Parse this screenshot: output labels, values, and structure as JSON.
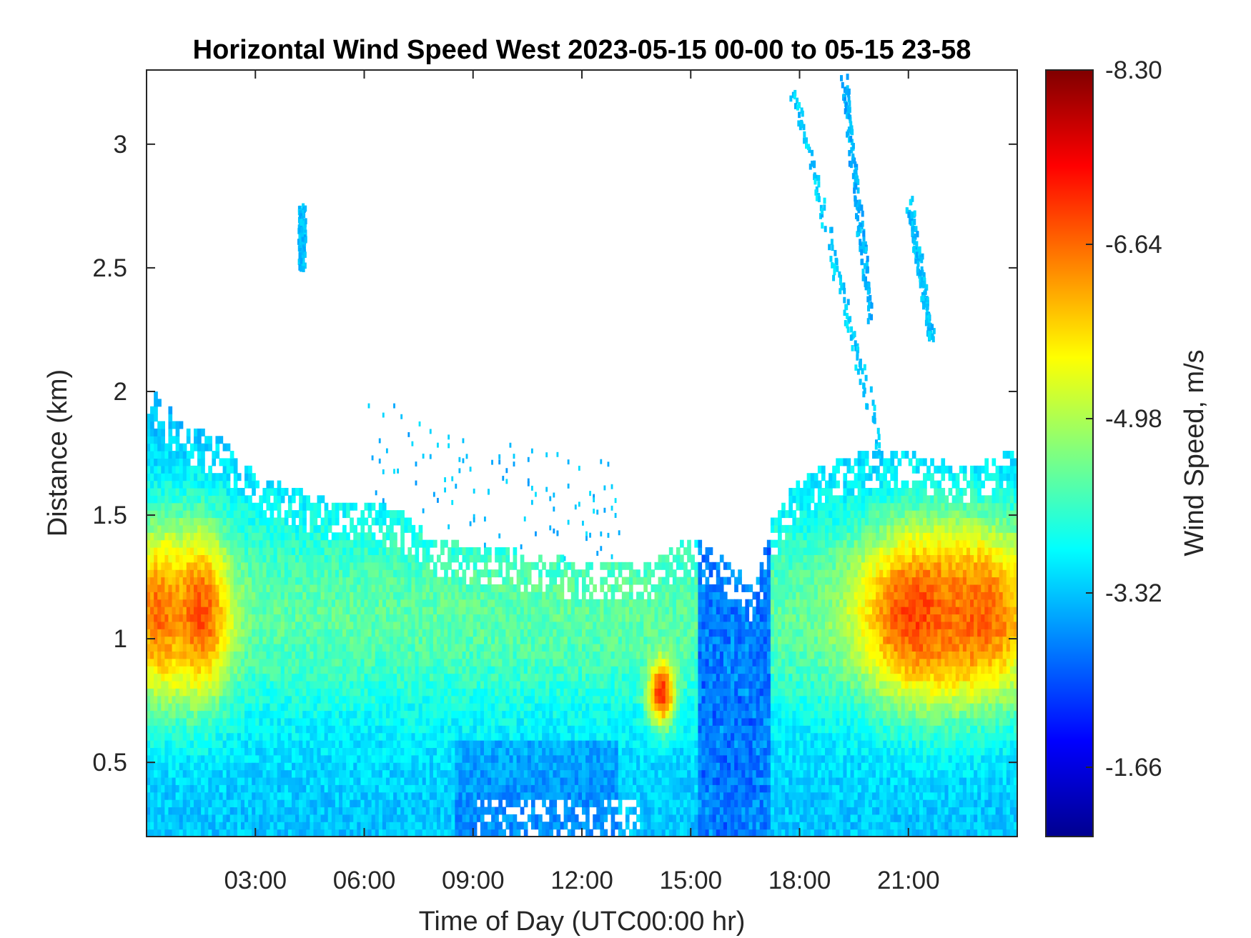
{
  "chart_data": {
    "type": "heatmap",
    "title": "Horizontal Wind Speed West 2023-05-15 00-00 to 05-15 23-58",
    "xlabel": "Time of Day (UTC00:00 hr)",
    "ylabel": "Distance (km)",
    "colorbar_label": "Wind Speed, m/s",
    "xlim_hours": [
      0,
      24
    ],
    "ylim_km": [
      0.2,
      3.3
    ],
    "x_ticks": [
      {
        "value": 3,
        "label": "03:00"
      },
      {
        "value": 6,
        "label": "06:00"
      },
      {
        "value": 9,
        "label": "09:00"
      },
      {
        "value": 12,
        "label": "12:00"
      },
      {
        "value": 15,
        "label": "15:00"
      },
      {
        "value": 18,
        "label": "18:00"
      },
      {
        "value": 21,
        "label": "21:00"
      }
    ],
    "y_ticks": [
      {
        "value": 0.5,
        "label": "0.5"
      },
      {
        "value": 1,
        "label": "1"
      },
      {
        "value": 1.5,
        "label": "1.5"
      },
      {
        "value": 2,
        "label": "2"
      },
      {
        "value": 2.5,
        "label": "2.5"
      },
      {
        "value": 3,
        "label": "3"
      }
    ],
    "colorbar_range": [
      -1.0,
      -8.3
    ],
    "colorbar_ticks": [
      {
        "value": -8.3,
        "label": "-8.30"
      },
      {
        "value": -6.64,
        "label": "-6.64"
      },
      {
        "value": -4.98,
        "label": "-4.98"
      },
      {
        "value": -3.32,
        "label": "-3.32"
      },
      {
        "value": -1.66,
        "label": "-1.66"
      }
    ],
    "colormap": "jet",
    "grid": false,
    "data_top_km_by_hour": [
      [
        0.0,
        2.0
      ],
      [
        0.5,
        1.95
      ],
      [
        1,
        1.85
      ],
      [
        2,
        1.8
      ],
      [
        3,
        1.65
      ],
      [
        4,
        1.6
      ],
      [
        5,
        1.55
      ],
      [
        6,
        1.55
      ],
      [
        7,
        1.5
      ],
      [
        8,
        1.4
      ],
      [
        9,
        1.35
      ],
      [
        10,
        1.35
      ],
      [
        11,
        1.32
      ],
      [
        12,
        1.3
      ],
      [
        13,
        1.3
      ],
      [
        14,
        1.3
      ],
      [
        15,
        1.4
      ],
      [
        16,
        1.3
      ],
      [
        16.8,
        1.2
      ],
      [
        17.2,
        1.45
      ],
      [
        18,
        1.65
      ],
      [
        19,
        1.7
      ],
      [
        20,
        1.75
      ],
      [
        21,
        1.75
      ],
      [
        22,
        1.7
      ],
      [
        23,
        1.7
      ],
      [
        24,
        1.75
      ]
    ],
    "speed_peaks": [
      {
        "hour": 0.3,
        "km": 1.1,
        "speed": -6.6
      },
      {
        "hour": 1.5,
        "km": 1.1,
        "speed": -6.8
      },
      {
        "hour": 14.2,
        "km": 0.78,
        "speed": -7.2
      },
      {
        "hour": 21.2,
        "km": 1.1,
        "speed": -7.0
      },
      {
        "hour": 23.0,
        "km": 1.1,
        "speed": -6.7
      }
    ],
    "aloft_streaks": [
      {
        "from_hour": 17.8,
        "from_km": 3.2,
        "to_hour": 20.2,
        "to_km": 1.75,
        "speed": -3.4
      },
      {
        "from_hour": 19.2,
        "from_km": 3.25,
        "to_hour": 19.9,
        "to_km": 2.3,
        "speed": -3.2
      },
      {
        "from_hour": 21.0,
        "from_km": 2.75,
        "to_hour": 21.6,
        "to_km": 2.2,
        "speed": -3.3
      },
      {
        "from_hour": 4.25,
        "from_km": 2.72,
        "to_hour": 4.25,
        "to_km": 2.5,
        "speed": -3.3
      }
    ]
  }
}
